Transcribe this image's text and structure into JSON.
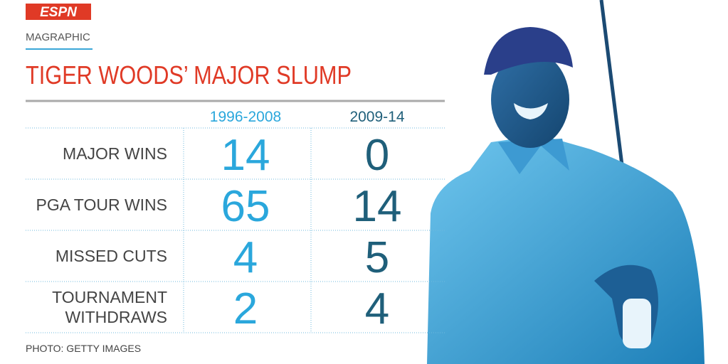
{
  "header": {
    "logo": "ESPN",
    "kicker": "MAGRAPHIC",
    "title": "TIGER WOODS’ MAJOR SLUMP"
  },
  "table": {
    "columns": [
      "1996-2008",
      "2009-14"
    ],
    "rows": [
      {
        "label": [
          "MAJOR WINS"
        ],
        "values": [
          14,
          0
        ]
      },
      {
        "label": [
          "PGA TOUR WINS"
        ],
        "values": [
          65,
          14
        ]
      },
      {
        "label": [
          "MISSED CUTS"
        ],
        "values": [
          4,
          5
        ]
      },
      {
        "label": [
          "TOURNAMENT",
          "WITHDRAWS"
        ],
        "values": [
          2,
          4
        ]
      }
    ]
  },
  "credit": "PHOTO: GETTY IMAGES"
}
